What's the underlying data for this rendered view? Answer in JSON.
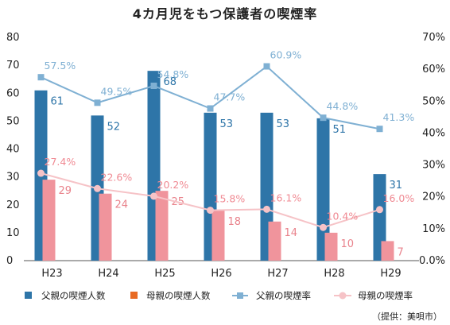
{
  "title": "4カ月児をもつ保護者の喫煙率",
  "source": "（提供：美唄市）",
  "chart_data": {
    "type": "bar",
    "title": "4カ月児をもつ保護者の喫煙率",
    "categories": [
      "H23",
      "H24",
      "H25",
      "H26",
      "H27",
      "H28",
      "H29"
    ],
    "left_axis": {
      "ylim": [
        0,
        80
      ],
      "ticks": [
        0,
        10,
        20,
        30,
        40,
        50,
        60,
        70,
        80
      ]
    },
    "right_axis": {
      "ylim": [
        0,
        70
      ],
      "ticks": [
        "0.0%",
        "10%",
        "20%",
        "30%",
        "40%",
        "50%",
        "60%",
        "70%"
      ]
    },
    "series": [
      {
        "name": "父親の喫煙人数",
        "kind": "bar",
        "axis": "left",
        "color": "#2e75a8",
        "label_color": "#2e75a8",
        "values": [
          61,
          52,
          68,
          53,
          53,
          51,
          31
        ],
        "labels": [
          "61",
          "52",
          "68",
          "53",
          "53",
          "51",
          "31"
        ]
      },
      {
        "name": "母親の喫煙人数",
        "kind": "bar",
        "axis": "left",
        "color": "#f0949c",
        "label_color": "#e9838c",
        "legend_color": "#e86a23",
        "values": [
          29,
          24,
          25,
          18,
          14,
          10,
          7
        ],
        "labels": [
          "29",
          "24",
          "25",
          "18",
          "14",
          "10",
          "7"
        ]
      },
      {
        "name": "父親の喫煙率",
        "kind": "line",
        "axis": "right",
        "color": "#7fb0d3",
        "label_color": "#7fb0d3",
        "values": [
          57.5,
          49.5,
          54.8,
          47.7,
          60.9,
          44.8,
          41.3
        ],
        "labels": [
          "57.5%",
          "49.5%",
          "54.8%",
          "47.7%",
          "60.9%",
          "44.8%",
          "41.3%"
        ]
      },
      {
        "name": "母親の喫煙率",
        "kind": "line",
        "axis": "right",
        "color": "#f6c3c7",
        "label_color": "#f08a93",
        "values": [
          27.4,
          22.6,
          20.2,
          15.8,
          16.1,
          10.4,
          16.0
        ],
        "labels": [
          "27.4%",
          "22.6%",
          "20.2%",
          "15.8%",
          "16.1%",
          "10.4%",
          "16.0%"
        ]
      }
    ],
    "legend": [
      "父親の喫煙人数",
      "母親の喫煙人数",
      "父親の喫煙率",
      "母親の喫煙率"
    ],
    "legend_position": "bottom",
    "grid": false
  }
}
